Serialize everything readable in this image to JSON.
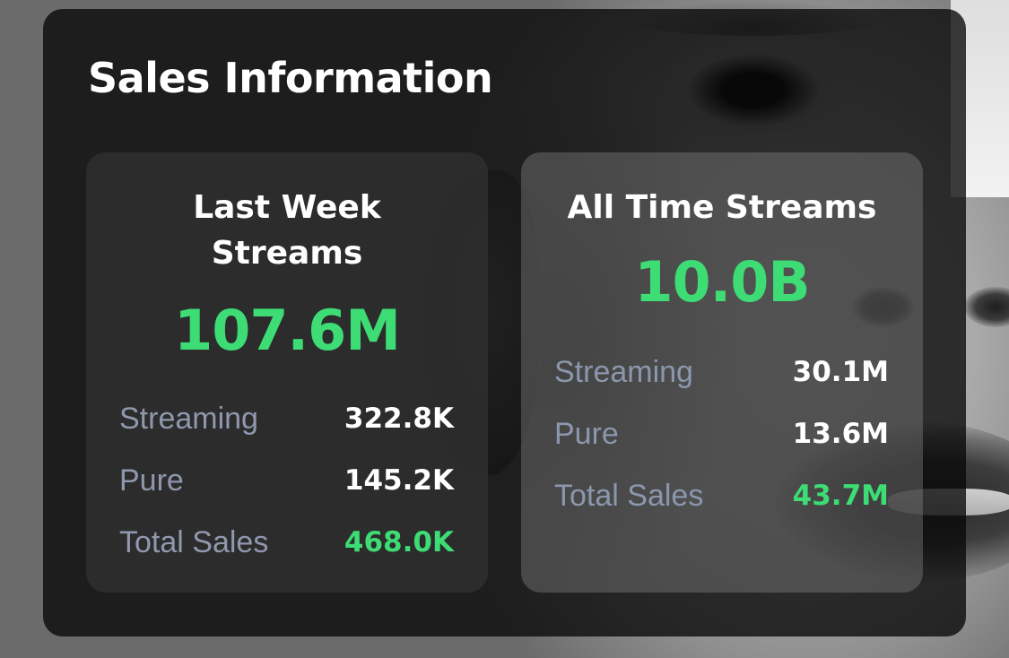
{
  "title": "Sales Information",
  "colors": {
    "accent_green": "#3ddc74",
    "label_gray": "#8f98ad",
    "text_white": "#ffffff"
  },
  "last_week": {
    "title_line1": "Last Week",
    "title_line2": "Streams",
    "total": "107.6M",
    "rows": [
      {
        "label": "Streaming",
        "value": "322.8K"
      },
      {
        "label": "Pure",
        "value": "145.2K"
      },
      {
        "label": "Total Sales",
        "value": "468.0K"
      }
    ]
  },
  "all_time": {
    "title": "All Time Streams",
    "total": "10.0B",
    "rows": [
      {
        "label": "Streaming",
        "value": "30.1M"
      },
      {
        "label": "Pure",
        "value": "13.6M"
      },
      {
        "label": "Total Sales",
        "value": "43.7M"
      }
    ]
  }
}
